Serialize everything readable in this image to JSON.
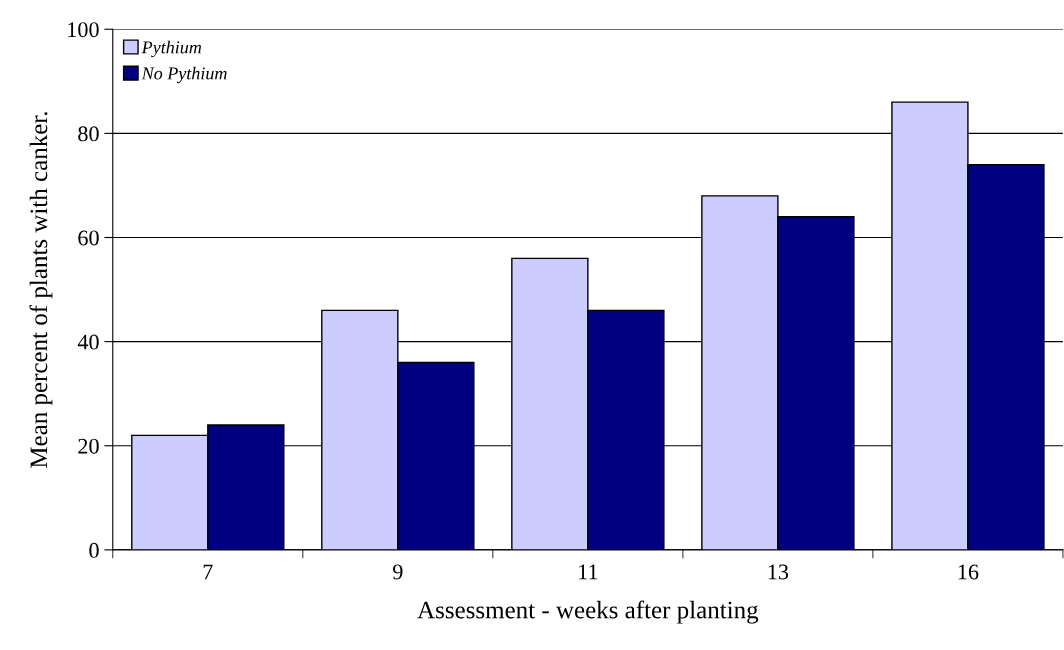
{
  "chart_data": {
    "type": "bar",
    "xlabel": "Assessment - weeks after planting",
    "ylabel": "Mean percent of plants with canker.",
    "categories": [
      "7",
      "9",
      "11",
      "13",
      "16"
    ],
    "series": [
      {
        "name": "Pythium",
        "color": "#ccccff",
        "values": [
          22,
          46,
          56,
          68,
          86
        ]
      },
      {
        "name": "No Pythium",
        "color": "#000080",
        "values": [
          24,
          36,
          46,
          64,
          74
        ]
      }
    ],
    "ylim": [
      0,
      100
    ],
    "yticks": [
      0,
      20,
      40,
      60,
      80,
      100
    ],
    "grid": "y",
    "legend": "top left"
  }
}
